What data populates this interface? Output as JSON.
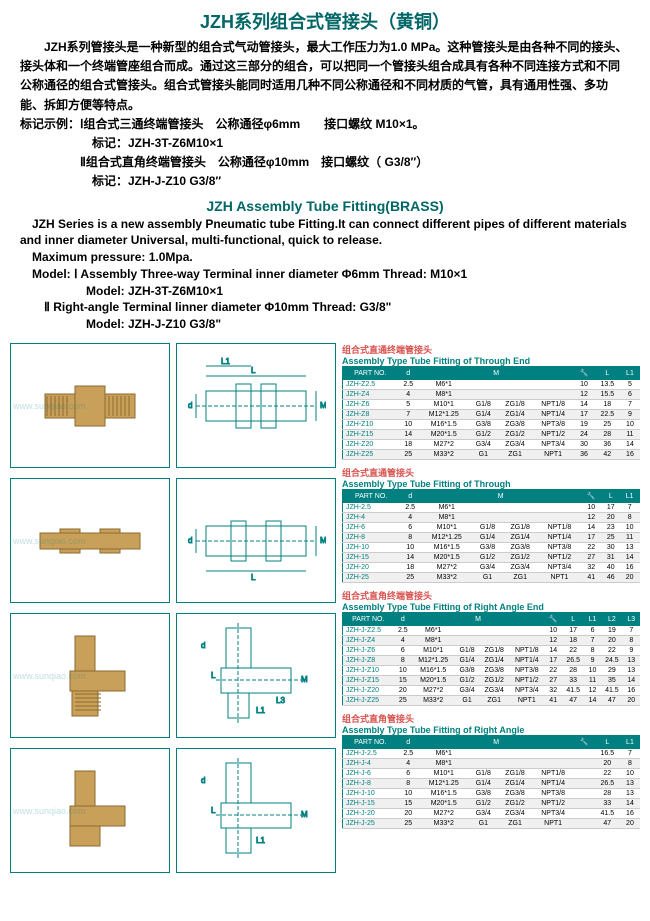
{
  "title_main": "JZH系列组合式管接头（黄铜）",
  "desc_cn": [
    "　　JZH系列管接头是一种新型的组合式气动管接头，最大工作压力为1.0 MPa。这种管接头是由各种不同的接头、接头体和一个终端管座组合而成。通过这三部分的组合，可以把同一个管接头组合成具有各种不同连接方式和不同公称通径的组合式管接头。组合式管接头能同时适用几种不同公称通径和不同材质的气管，具有通用性强、多功能、拆卸方便等特点。",
    "标记示例：Ⅰ组合式三通终端管接头　公称通径φ6mm　　接口螺纹 M10×1。",
    "　　　　　　标记：JZH-3T-Z6M10×1",
    "　　　　　Ⅱ组合式直角终端管接头　公称通径φ10mm　接口螺纹（ G3/8″）",
    "　　　　　　标记：JZH-J-Z10  G3/8″"
  ],
  "subtitle_en": "JZH Assembly Tube Fitting(BRASS)",
  "desc_en": [
    "　JZH Series is a new assembly Pneumatic tube Fitting.It can connect different pipes of different materials and  inner diameter Universal, multi-functional, quick to release.",
    "　Maximum pressure: 1.0Mpa.",
    "　Model: Ⅰ Assembly  Three-way Terminal    inner diameter    Φ6mm   Thread: M10×1",
    "　　　Model: JZH-3T-Z6M10×1",
    "　　Ⅱ Right-angle Terminal  linner diameter   Φ10mm    Thread: G3/8\"",
    "　　　Model: JZH-J-Z10 G3/8\""
  ],
  "watermark": "www.sunqiao.com",
  "tables": [
    {
      "title_cn": "组合式直通终端管接头",
      "title_en": "Assembly Type  Tube Fitting of  Through End",
      "headers": [
        "PART NO.",
        "d",
        "M",
        "",
        "",
        "",
        "🔧",
        "L",
        "L1"
      ],
      "rows": [
        [
          "JZH-Z2.5",
          "2.5",
          "M6*1",
          "",
          "",
          "",
          "10",
          "13.5",
          "5"
        ],
        [
          "JZH-Z4",
          "4",
          "M8*1",
          "",
          "",
          "",
          "12",
          "15.5",
          "6"
        ],
        [
          "JZH-Z6",
          "5",
          "M10*1",
          "G1/8",
          "ZG1/8",
          "NPT1/8",
          "14",
          "18",
          "7"
        ],
        [
          "JZH-Z8",
          "7",
          "M12*1.25",
          "G1/4",
          "ZG1/4",
          "NPT1/4",
          "17",
          "22.5",
          "9"
        ],
        [
          "JZH-Z10",
          "10",
          "M16*1.5",
          "G3/8",
          "ZG3/8",
          "NPT3/8",
          "19",
          "25",
          "10"
        ],
        [
          "JZH-Z15",
          "14",
          "M20*1.5",
          "G1/2",
          "ZG1/2",
          "NPT1/2",
          "24",
          "28",
          "11"
        ],
        [
          "JZH-Z20",
          "18",
          "M27*2",
          "G3/4",
          "ZG3/4",
          "NPT3/4",
          "30",
          "36",
          "14"
        ],
        [
          "JZH-Z25",
          "25",
          "M33*2",
          "G1",
          "ZG1",
          "NPT1",
          "36",
          "42",
          "16"
        ]
      ]
    },
    {
      "title_cn": "组合式直通管接头",
      "title_en": "Assembly Type  Tube Fitting of  Through",
      "headers": [
        "PART NO.",
        "d",
        "M",
        "",
        "",
        "",
        "🔧",
        "L",
        "L1"
      ],
      "rows": [
        [
          "JZH-2.5",
          "2.5",
          "M6*1",
          "",
          "",
          "",
          "10",
          "17",
          "7"
        ],
        [
          "JZH-4",
          "4",
          "M8*1",
          "",
          "",
          "",
          "12",
          "20",
          "8"
        ],
        [
          "JZH-6",
          "6",
          "M10*1",
          "G1/8",
          "ZG1/8",
          "NPT1/8",
          "14",
          "23",
          "10"
        ],
        [
          "JZH-8",
          "8",
          "M12*1.25",
          "G1/4",
          "ZG1/4",
          "NPT1/4",
          "17",
          "25",
          "11"
        ],
        [
          "JZH-10",
          "10",
          "M16*1.5",
          "G3/8",
          "ZG3/8",
          "NPT3/8",
          "22",
          "30",
          "13"
        ],
        [
          "JZH-15",
          "14",
          "M20*1.5",
          "G1/2",
          "ZG1/2",
          "NPT1/2",
          "27",
          "31",
          "14"
        ],
        [
          "JZH-20",
          "18",
          "M27*2",
          "G3/4",
          "ZG3/4",
          "NPT3/4",
          "32",
          "40",
          "16"
        ],
        [
          "JZH-25",
          "25",
          "M33*2",
          "G1",
          "ZG1",
          "NPT1",
          "41",
          "46",
          "20"
        ]
      ]
    },
    {
      "title_cn": "组合式直角终端管接头",
      "title_en": "Assembly Type  Tube Fitting of  Right Angle End",
      "headers": [
        "PART NO.",
        "d",
        "M",
        "",
        "",
        "",
        "🔧",
        "L",
        "L1",
        "L2",
        "L3"
      ],
      "rows": [
        [
          "JZH-J-Z2.5",
          "2.5",
          "M6*1",
          "",
          "",
          "",
          "10",
          "17",
          "6",
          "19",
          "7"
        ],
        [
          "JZH-J-Z4",
          "4",
          "M8*1",
          "",
          "",
          "",
          "12",
          "18",
          "7",
          "20",
          "8"
        ],
        [
          "JZH-J-Z6",
          "6",
          "M10*1",
          "G1/8",
          "ZG1/8",
          "NPT1/8",
          "14",
          "22",
          "8",
          "22",
          "9"
        ],
        [
          "JZH-J-Z8",
          "8",
          "M12*1.25",
          "G1/4",
          "ZG1/4",
          "NPT1/4",
          "17",
          "26.5",
          "9",
          "24.5",
          "13"
        ],
        [
          "JZH-J-Z10",
          "10",
          "M16*1.5",
          "G3/8",
          "ZG3/8",
          "NPT3/8",
          "22",
          "28",
          "10",
          "29",
          "13"
        ],
        [
          "JZH-J-Z15",
          "15",
          "M20*1.5",
          "G1/2",
          "ZG1/2",
          "NPT1/2",
          "27",
          "33",
          "11",
          "35",
          "14"
        ],
        [
          "JZH-J-Z20",
          "20",
          "M27*2",
          "G3/4",
          "ZG3/4",
          "NPT3/4",
          "32",
          "41.5",
          "12",
          "41.5",
          "16"
        ],
        [
          "JZH-J-Z25",
          "25",
          "M33*2",
          "G1",
          "ZG1",
          "NPT1",
          "41",
          "47",
          "14",
          "47",
          "20"
        ]
      ]
    },
    {
      "title_cn": "组合式直角管接头",
      "title_en": "Assembly Type  Tube Fitting of  Right Angle",
      "headers": [
        "PART NO.",
        "d",
        "M",
        "",
        "",
        "",
        "🔧",
        "L",
        "L1"
      ],
      "rows": [
        [
          "JZH-J-2.5",
          "2.5",
          "M6*1",
          "",
          "",
          "",
          "",
          "16.5",
          "7"
        ],
        [
          "JZH-J-4",
          "4",
          "M8*1",
          "",
          "",
          "",
          "",
          "20",
          "8"
        ],
        [
          "JZH-J-6",
          "6",
          "M10*1",
          "G1/8",
          "ZG1/8",
          "NPT1/8",
          "",
          "22",
          "10"
        ],
        [
          "JZH-J-8",
          "8",
          "M12*1.25",
          "G1/4",
          "ZG1/4",
          "NPT1/4",
          "",
          "26.5",
          "13"
        ],
        [
          "JZH-J-10",
          "10",
          "M16*1.5",
          "G3/8",
          "ZG3/8",
          "NPT3/8",
          "",
          "28",
          "13"
        ],
        [
          "JZH-J-15",
          "15",
          "M20*1.5",
          "G1/2",
          "ZG1/2",
          "NPT1/2",
          "",
          "33",
          "14"
        ],
        [
          "JZH-J-20",
          "20",
          "M27*2",
          "G3/4",
          "ZG3/4",
          "NPT3/4",
          "",
          "41.5",
          "16"
        ],
        [
          "JZH-J-25",
          "25",
          "M33*2",
          "G1",
          "ZG1",
          "NPT1",
          "",
          "47",
          "20"
        ]
      ]
    }
  ],
  "colors": {
    "teal": "#008080",
    "red": "#d9534f",
    "brass": "#c9a05a",
    "brass_dark": "#8a6a2f"
  }
}
